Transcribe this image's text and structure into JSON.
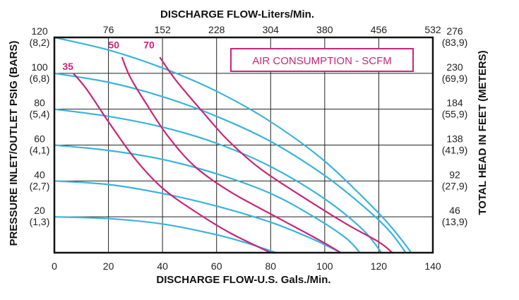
{
  "chart_data": {
    "type": "line",
    "title_top": "DISCHARGE FLOW-Liters/Min.",
    "xlabel": "DISCHARGE FLOW-U.S. Gals./Min.",
    "ylabel_left": "PRESSURE INLET/OUTLET PSIG (BARS)",
    "ylabel_right": "TOTAL HEAD IN FEET (METERS)",
    "legend_box": "AIR CONSUMPTION - SCFM",
    "xlim": [
      0,
      140
    ],
    "ylim": [
      0,
      120
    ],
    "grid": true,
    "x_ticks_bottom": [
      "0",
      "20",
      "40",
      "60",
      "80",
      "100",
      "120",
      "140"
    ],
    "x_ticks_top": [
      "76",
      "152",
      "228",
      "304",
      "380",
      "456",
      "532"
    ],
    "y_ticks_left": [
      {
        "psi": "120",
        "bar": "(8,2)"
      },
      {
        "psi": "100",
        "bar": "(6,8)"
      },
      {
        "psi": "80",
        "bar": "(5,4)"
      },
      {
        "psi": "60",
        "bar": "(4,1)"
      },
      {
        "psi": "40",
        "bar": "(2,7)"
      },
      {
        "psi": "20",
        "bar": "(1,3)"
      }
    ],
    "y_ticks_right": [
      {
        "feet": "276",
        "meters": "(83,9)"
      },
      {
        "feet": "230",
        "meters": "(69,9)"
      },
      {
        "feet": "184",
        "meters": "(55,9)"
      },
      {
        "feet": "138",
        "meters": "(41,9)"
      },
      {
        "feet": "92",
        "meters": "(27,9)"
      },
      {
        "feet": "46",
        "meters": "(13,9)"
      }
    ],
    "performance_curves": [
      {
        "x": [
          0,
          20,
          40,
          60,
          80,
          100,
          120,
          128,
          132
        ],
        "y": [
          120,
          113,
          103,
          90,
          73,
          51,
          22,
          8,
          0
        ]
      },
      {
        "x": [
          0,
          20,
          40,
          60,
          80,
          100,
          115,
          124,
          130
        ],
        "y": [
          100,
          95,
          87,
          76,
          62,
          43,
          25,
          12,
          0
        ]
      },
      {
        "x": [
          0,
          20,
          40,
          60,
          80,
          100,
          114,
          121
        ],
        "y": [
          80,
          76,
          70,
          61,
          48,
          30,
          13,
          0
        ]
      },
      {
        "x": [
          0,
          20,
          40,
          60,
          80,
          96,
          108,
          113
        ],
        "y": [
          60,
          57,
          52,
          44,
          33,
          20,
          8,
          0
        ]
      },
      {
        "x": [
          0,
          20,
          40,
          60,
          80,
          95,
          106
        ],
        "y": [
          40,
          38,
          33,
          26,
          17,
          8,
          0
        ]
      },
      {
        "x": [
          0,
          20,
          40,
          60,
          72,
          82
        ],
        "y": [
          20,
          19,
          16,
          10,
          5,
          0
        ]
      }
    ],
    "air_consumption_curves": [
      {
        "label": "35",
        "label_x": 5,
        "label_y": 102,
        "x": [
          7,
          12,
          20,
          30,
          40,
          52,
          65,
          80
        ],
        "y": [
          100,
          91,
          73,
          52,
          36,
          23,
          11,
          0
        ]
      },
      {
        "label": "50",
        "label_x": 22,
        "label_y": 114,
        "x": [
          25,
          28,
          34,
          42,
          52,
          65,
          82,
          98,
          106
        ],
        "y": [
          109,
          98,
          83,
          65,
          48,
          34,
          20,
          7,
          0
        ]
      },
      {
        "label": "70",
        "label_x": 35,
        "label_y": 114,
        "x": [
          39,
          45,
          54,
          64,
          76,
          92,
          108,
          120,
          125
        ],
        "y": [
          109,
          96,
          80,
          63,
          47,
          31,
          16,
          6,
          0
        ]
      }
    ],
    "colors": {
      "performance": "#3ab4dc",
      "air": "#c8267a",
      "grid": "#222222",
      "frame": "#111111"
    }
  }
}
